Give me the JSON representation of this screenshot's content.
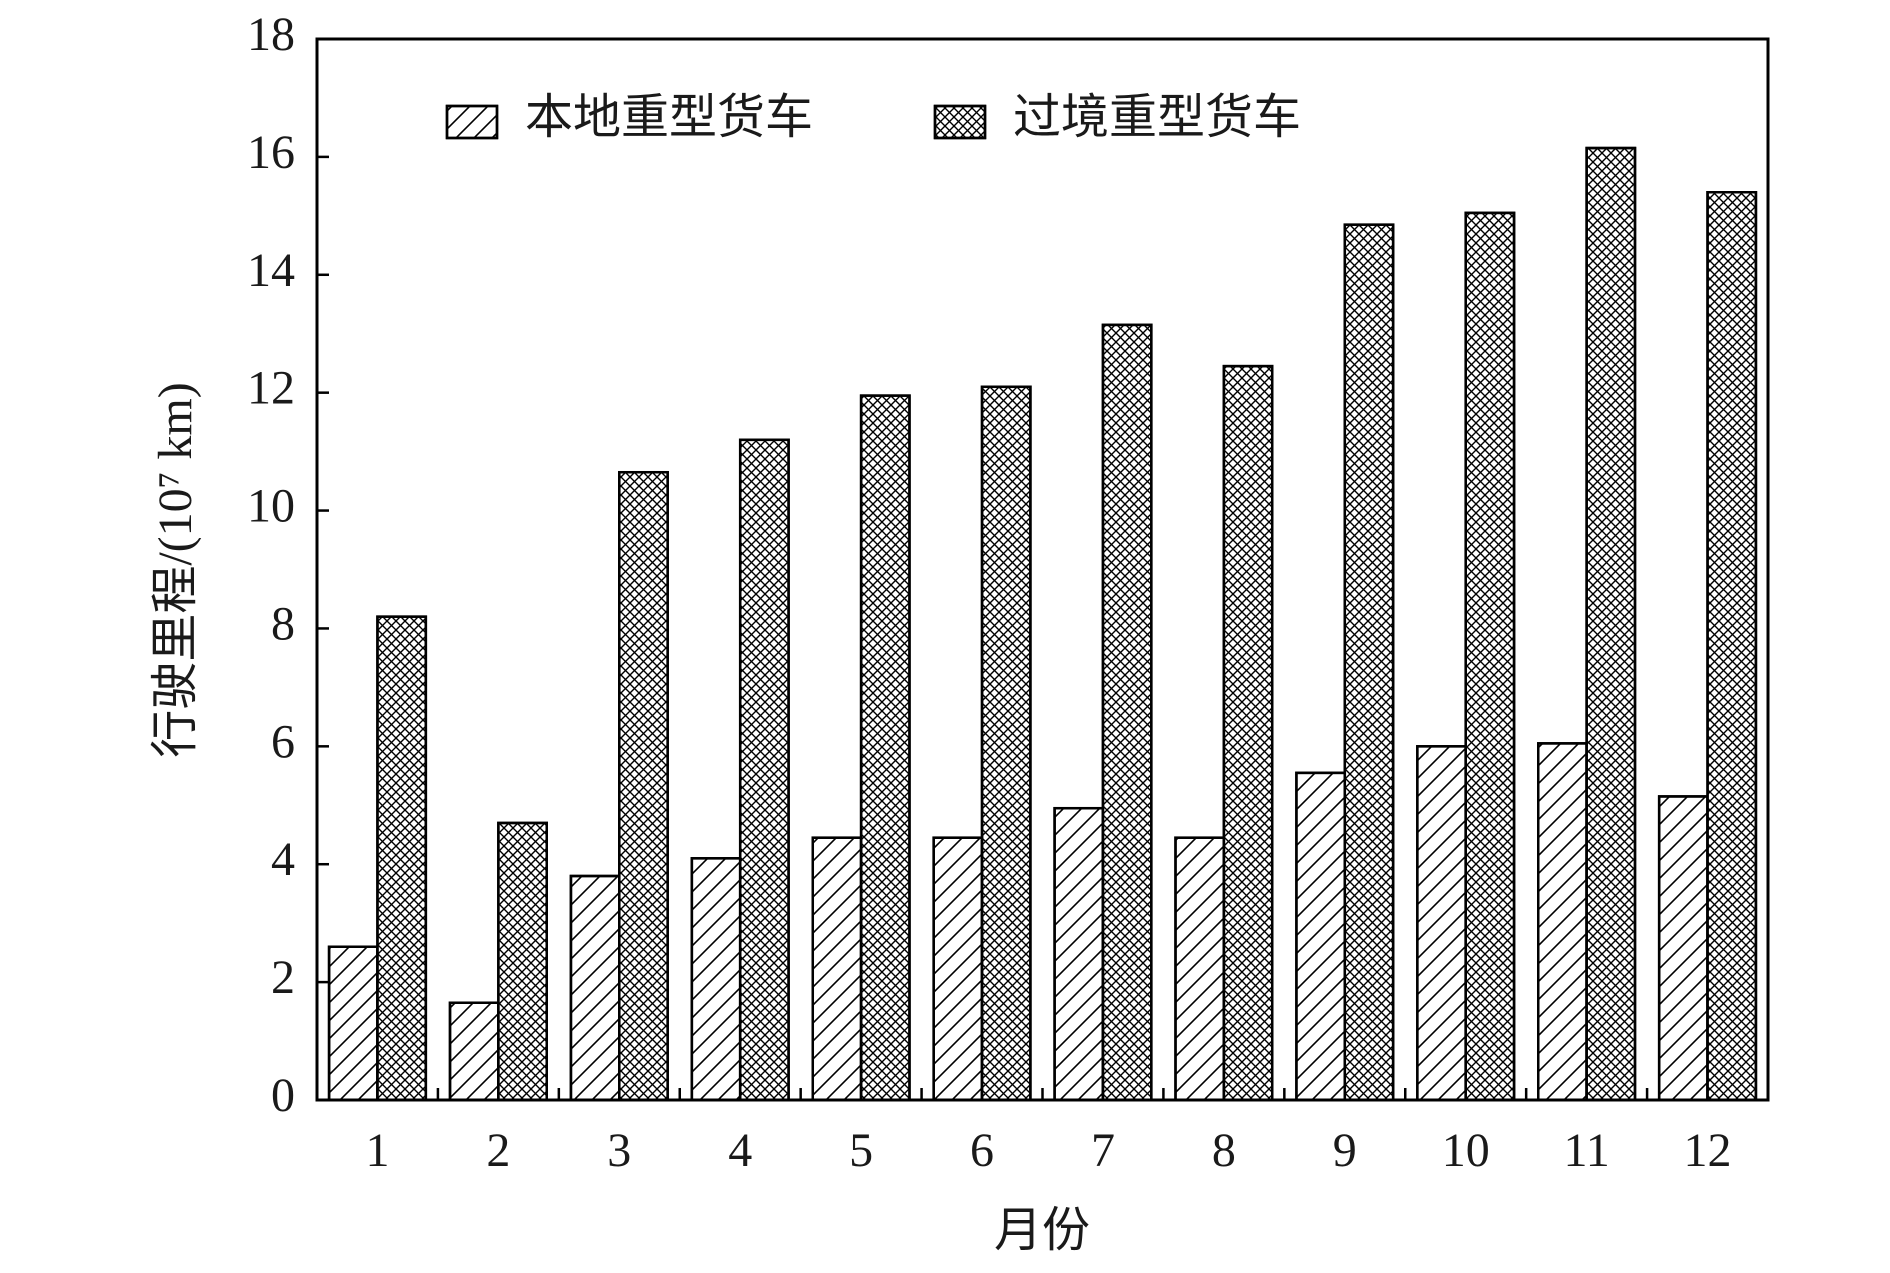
{
  "chart_data": {
    "type": "bar",
    "x_label": "月份",
    "y_label": "行驶里程/(10⁷ km)",
    "categories": [
      "1",
      "2",
      "3",
      "4",
      "5",
      "6",
      "7",
      "8",
      "9",
      "10",
      "11",
      "12"
    ],
    "series": [
      {
        "name": "本地重型货车",
        "color": "#000000",
        "hatch": "/",
        "values": [
          2.6,
          1.65,
          3.8,
          4.1,
          4.45,
          4.45,
          4.95,
          4.45,
          5.55,
          6.0,
          6.05,
          5.15
        ]
      },
      {
        "name": "过境重型货车",
        "color": "#000000",
        "hatch": "x",
        "values": [
          8.2,
          4.7,
          10.65,
          11.2,
          11.95,
          12.1,
          13.15,
          12.45,
          14.85,
          15.05,
          16.15,
          15.4
        ]
      }
    ],
    "ylim": [
      0,
      18
    ],
    "yticks": [
      0,
      2,
      4,
      6,
      8,
      10,
      12,
      14,
      16,
      18
    ],
    "legend": "top-left"
  }
}
